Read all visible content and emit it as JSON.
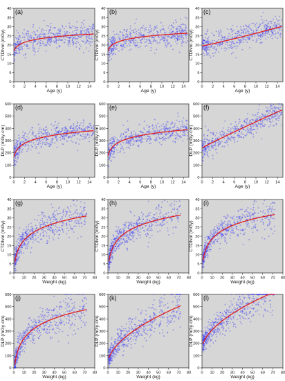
{
  "chart_data": [
    {
      "id": "a",
      "type": "scatter",
      "label": "(a)",
      "xlabel": "Age (y)",
      "ylabel": "CTDIvol (mGy)",
      "xlim": [
        0,
        15
      ],
      "ylim": [
        0,
        40
      ],
      "xticks": [
        0,
        2,
        4,
        6,
        8,
        10,
        12,
        14
      ],
      "yticks": [
        0,
        5,
        10,
        15,
        20,
        25,
        30,
        35,
        40
      ],
      "fit": {
        "kind": "log",
        "a": 19.5,
        "b": 2.4,
        "c": 0.3
      },
      "n_points": 480,
      "x_range": [
        0.02,
        14.8
      ],
      "fit_points": [
        [
          0.1,
          13.0
        ],
        [
          1,
          19.0
        ],
        [
          2,
          20.9
        ],
        [
          4,
          22.5
        ],
        [
          6,
          23.6
        ],
        [
          8,
          24.3
        ],
        [
          10,
          24.9
        ],
        [
          12,
          25.4
        ],
        [
          14,
          25.9
        ]
      ]
    },
    {
      "id": "b",
      "type": "scatter",
      "label": "(b)",
      "xlabel": "Age (y)",
      "ylabel": "CTDIvol (mGy)",
      "xlim": [
        0,
        15
      ],
      "ylim": [
        0,
        40
      ],
      "xticks": [
        0,
        2,
        4,
        6,
        8,
        10,
        12,
        14
      ],
      "yticks": [
        0,
        5,
        10,
        15,
        20,
        25,
        30,
        35,
        40
      ],
      "fit": {
        "kind": "log",
        "a": 19.8,
        "b": 2.45,
        "c": 0.3
      },
      "n_points": 480,
      "x_range": [
        0.02,
        14.8
      ],
      "fit_points": [
        [
          0.1,
          13.2
        ],
        [
          1,
          19.3
        ],
        [
          2,
          21.2
        ],
        [
          4,
          22.9
        ],
        [
          6,
          24.0
        ],
        [
          8,
          24.7
        ],
        [
          10,
          25.3
        ],
        [
          12,
          25.9
        ],
        [
          14,
          26.3
        ]
      ]
    },
    {
      "id": "c",
      "type": "scatter",
      "label": "(c)",
      "xlabel": "Age (y)",
      "ylabel": "CTDIvol (mGy)",
      "xlim": [
        0,
        15
      ],
      "ylim": [
        0,
        40
      ],
      "xticks": [
        0,
        2,
        4,
        6,
        8,
        10,
        12,
        14
      ],
      "yticks": [
        0,
        5,
        10,
        15,
        20,
        25,
        30,
        35,
        40
      ],
      "fit": {
        "kind": "power",
        "a": 19.5,
        "b": 0.55,
        "p": 1.1
      },
      "n_points": 480,
      "x_range": [
        0.02,
        14.8
      ],
      "fit_points": [
        [
          0.1,
          14.5
        ],
        [
          1,
          19.7
        ],
        [
          2,
          20.5
        ],
        [
          4,
          21.8
        ],
        [
          6,
          23.0
        ],
        [
          8,
          24.2
        ],
        [
          10,
          25.3
        ],
        [
          12,
          26.5
        ],
        [
          14,
          27.6
        ]
      ]
    },
    {
      "id": "d",
      "type": "scatter",
      "label": "(d)",
      "xlabel": "Age (y)",
      "ylabel": "DLP (mGy·cm)",
      "xlim": [
        0,
        15
      ],
      "ylim": [
        0,
        600
      ],
      "xticks": [
        0,
        2,
        4,
        6,
        8,
        10,
        12,
        14
      ],
      "yticks": [
        0,
        100,
        200,
        300,
        400,
        500,
        600
      ],
      "fit": {
        "kind": "log",
        "a": 232,
        "b": 55,
        "c": 0.3
      },
      "n_points": 480,
      "x_range": [
        0.02,
        14.8
      ],
      "fit_points": [
        [
          0.1,
          90
        ],
        [
          1,
          245
        ],
        [
          2,
          290
        ],
        [
          4,
          320
        ],
        [
          6,
          340
        ],
        [
          8,
          352
        ],
        [
          10,
          362
        ],
        [
          12,
          370
        ],
        [
          14,
          378
        ]
      ]
    },
    {
      "id": "e",
      "type": "scatter",
      "label": "(e)",
      "xlabel": "Age (y)",
      "ylabel": "DLP (mGy·cm)",
      "xlim": [
        0,
        15
      ],
      "ylim": [
        0,
        600
      ],
      "xticks": [
        0,
        2,
        4,
        6,
        8,
        10,
        12,
        14
      ],
      "yticks": [
        0,
        100,
        200,
        300,
        400,
        500,
        600
      ],
      "fit": {
        "kind": "log",
        "a": 240,
        "b": 55,
        "c": 0.3
      },
      "n_points": 480,
      "x_range": [
        0.02,
        14.8
      ],
      "fit_points": [
        [
          0.1,
          98
        ],
        [
          1,
          253
        ],
        [
          2,
          296
        ],
        [
          4,
          328
        ],
        [
          6,
          347
        ],
        [
          8,
          360
        ],
        [
          10,
          370
        ],
        [
          12,
          378
        ],
        [
          14,
          386
        ]
      ]
    },
    {
      "id": "f",
      "type": "scatter",
      "label": "(f)",
      "xlabel": "Age (y)",
      "ylabel": "DLP (mGy·cm)",
      "xlim": [
        0,
        15
      ],
      "ylim": [
        0,
        600
      ],
      "xticks": [
        0,
        2,
        4,
        6,
        8,
        10,
        12,
        14
      ],
      "yticks": [
        0,
        100,
        200,
        300,
        400,
        500,
        600
      ],
      "fit": {
        "kind": "power",
        "a": 240,
        "b": 24,
        "p": 0.95
      },
      "n_points": 480,
      "x_range": [
        0.02,
        14.8
      ],
      "fit_points": [
        [
          0.1,
          150
        ],
        [
          1,
          264
        ],
        [
          2,
          286
        ],
        [
          4,
          328
        ],
        [
          6,
          350
        ],
        [
          8,
          370
        ],
        [
          10,
          385
        ],
        [
          12,
          400
        ],
        [
          14,
          410
        ]
      ]
    },
    {
      "id": "g",
      "type": "scatter",
      "label": "(g)",
      "xlabel": "Weight (kg)",
      "ylabel": "CTDIvol (mGy)",
      "xlim": [
        0,
        80
      ],
      "ylim": [
        0,
        40
      ],
      "xticks": [
        0,
        10,
        20,
        30,
        40,
        50,
        60,
        70,
        80
      ],
      "yticks": [
        0,
        5,
        10,
        15,
        20,
        25,
        30,
        35,
        40
      ],
      "fit": {
        "kind": "log",
        "a": 1.0,
        "b": 7.0,
        "c": 1.0
      },
      "n_points": 520,
      "x_range": [
        1,
        72
      ],
      "fit_points": [
        [
          2,
          8.7
        ],
        [
          5,
          13.5
        ],
        [
          10,
          17.8
        ],
        [
          20,
          22.3
        ],
        [
          30,
          25.0
        ],
        [
          40,
          27.0
        ],
        [
          50,
          28.5
        ],
        [
          60,
          29.8
        ],
        [
          70,
          30.9
        ]
      ]
    },
    {
      "id": "h",
      "type": "scatter",
      "label": "(h)",
      "xlabel": "Weight (kg)",
      "ylabel": "CTDIvol (mGy)",
      "xlim": [
        0,
        80
      ],
      "ylim": [
        0,
        40
      ],
      "xticks": [
        0,
        10,
        20,
        30,
        40,
        50,
        60,
        70,
        80
      ],
      "yticks": [
        0,
        5,
        10,
        15,
        20,
        25,
        30,
        35,
        40
      ],
      "fit": {
        "kind": "log",
        "a": 1.5,
        "b": 7.0,
        "c": 1.0
      },
      "n_points": 520,
      "x_range": [
        1,
        72
      ],
      "fit_points": [
        [
          2,
          9.2
        ],
        [
          5,
          14.0
        ],
        [
          10,
          18.3
        ],
        [
          20,
          22.8
        ],
        [
          30,
          25.5
        ],
        [
          40,
          27.5
        ],
        [
          50,
          29.0
        ],
        [
          60,
          30.3
        ],
        [
          70,
          31.4
        ]
      ]
    },
    {
      "id": "i",
      "type": "scatter",
      "label": "(i)",
      "xlabel": "Weight (kg)",
      "ylabel": "CTDIvol (mGy)",
      "xlim": [
        0,
        80
      ],
      "ylim": [
        0,
        40
      ],
      "xticks": [
        0,
        10,
        20,
        30,
        40,
        50,
        60,
        70,
        80
      ],
      "yticks": [
        0,
        5,
        10,
        15,
        20,
        25,
        30,
        35,
        40
      ],
      "fit": {
        "kind": "log",
        "a": 1.8,
        "b": 7.0,
        "c": 1.0
      },
      "n_points": 520,
      "x_range": [
        1,
        72
      ],
      "fit_points": [
        [
          2,
          9.5
        ],
        [
          5,
          14.3
        ],
        [
          10,
          18.6
        ],
        [
          20,
          23.1
        ],
        [
          30,
          25.8
        ],
        [
          40,
          27.8
        ],
        [
          50,
          29.3
        ],
        [
          60,
          30.6
        ],
        [
          70,
          31.7
        ]
      ]
    },
    {
      "id": "j",
      "type": "scatter",
      "label": "(j)",
      "xlabel": "Weight (kg)",
      "ylabel": "DLP (mGy·cm)",
      "xlim": [
        0,
        80
      ],
      "ylim": [
        0,
        600
      ],
      "xticks": [
        0,
        10,
        20,
        30,
        40,
        50,
        60,
        70,
        80
      ],
      "yticks": [
        0,
        100,
        200,
        300,
        400,
        500,
        600
      ],
      "fit": {
        "kind": "log",
        "a": -60,
        "b": 125,
        "c": 1.0
      },
      "n_points": 520,
      "x_range": [
        1,
        72
      ],
      "fit_points": [
        [
          2,
          77
        ],
        [
          5,
          164
        ],
        [
          10,
          240
        ],
        [
          20,
          321
        ],
        [
          30,
          369
        ],
        [
          40,
          404
        ],
        [
          50,
          431
        ],
        [
          60,
          454
        ],
        [
          70,
          473
        ]
      ]
    },
    {
      "id": "k",
      "type": "scatter",
      "label": "(k)",
      "xlabel": "Weight (kg)",
      "ylabel": "DLP (mGy·cm)",
      "xlim": [
        0,
        80
      ],
      "ylim": [
        0,
        600
      ],
      "xticks": [
        0,
        10,
        20,
        30,
        40,
        50,
        60,
        70,
        80
      ],
      "yticks": [
        0,
        100,
        200,
        300,
        400,
        500,
        600
      ],
      "fit": {
        "kind": "power",
        "a": 35,
        "b": 45,
        "p": 0.55
      },
      "n_points": 520,
      "x_range": [
        1,
        72
      ],
      "fit_points": [
        [
          2,
          101
        ],
        [
          5,
          153
        ],
        [
          10,
          197
        ],
        [
          20,
          270
        ],
        [
          30,
          321
        ],
        [
          40,
          374
        ],
        [
          50,
          418
        ],
        [
          60,
          458
        ],
        [
          70,
          498
        ]
      ]
    },
    {
      "id": "l",
      "type": "scatter",
      "label": "(l)",
      "xlabel": "Weight (kg)",
      "ylabel": "DLP (mGy·cm)",
      "xlim": [
        0,
        80
      ],
      "ylim": [
        0,
        600
      ],
      "xticks": [
        0,
        10,
        20,
        30,
        40,
        50,
        60,
        70,
        80
      ],
      "yticks": [
        0,
        100,
        200,
        300,
        400,
        500,
        600
      ],
      "fit": {
        "kind": "power",
        "a": 150,
        "b": 45,
        "p": 0.55
      },
      "n_points": 520,
      "x_range": [
        1,
        72
      ],
      "fit_points": [
        [
          2,
          196
        ],
        [
          5,
          248
        ],
        [
          10,
          292
        ],
        [
          20,
          365
        ],
        [
          30,
          416
        ],
        [
          40,
          470
        ],
        [
          50,
          514
        ],
        [
          60,
          540
        ],
        [
          70,
          560
        ]
      ]
    }
  ],
  "colors": {
    "points": "#3b3bf5",
    "fit_line": "#e0201e",
    "panel_background": "#d6d6d6"
  }
}
